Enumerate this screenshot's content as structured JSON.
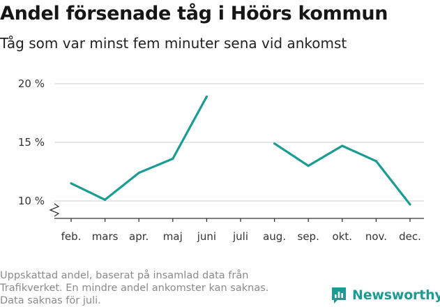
{
  "title": "Andel försenade tåg i Höörs kommun",
  "subtitle": "Tåg som var minst fem minuter sena vid ankomst",
  "footnote": [
    "Uppskattad andel, baserat på insamlad data från",
    "Trafikverket. En mindre andel ankomster kan saknas.",
    "Data saknas för juli."
  ],
  "brand": {
    "name": "Newsworthy",
    "color": "#1e9a92",
    "icon": "newsworthy-logo-icon"
  },
  "colors": {
    "line": "#1b9c92",
    "grid": "#d9d9d9",
    "axis": "#333333"
  },
  "chart_data": {
    "type": "line",
    "categories": [
      "feb.",
      "mars",
      "apr.",
      "maj",
      "juni",
      "juli",
      "aug.",
      "sep.",
      "okt.",
      "nov.",
      "dec."
    ],
    "series": [
      {
        "values": [
          11.5,
          10.1,
          12.4,
          13.6,
          18.9,
          null,
          14.9,
          13.0,
          14.7,
          13.4,
          9.7
        ]
      }
    ],
    "yticks": [
      10,
      15,
      20
    ],
    "ytick_labels": [
      "10 %",
      "15 %",
      "20 %"
    ],
    "ylim": [
      8,
      20
    ],
    "y_axis_break": true,
    "grid": "horizontal",
    "xlabel": "",
    "ylabel": ""
  }
}
